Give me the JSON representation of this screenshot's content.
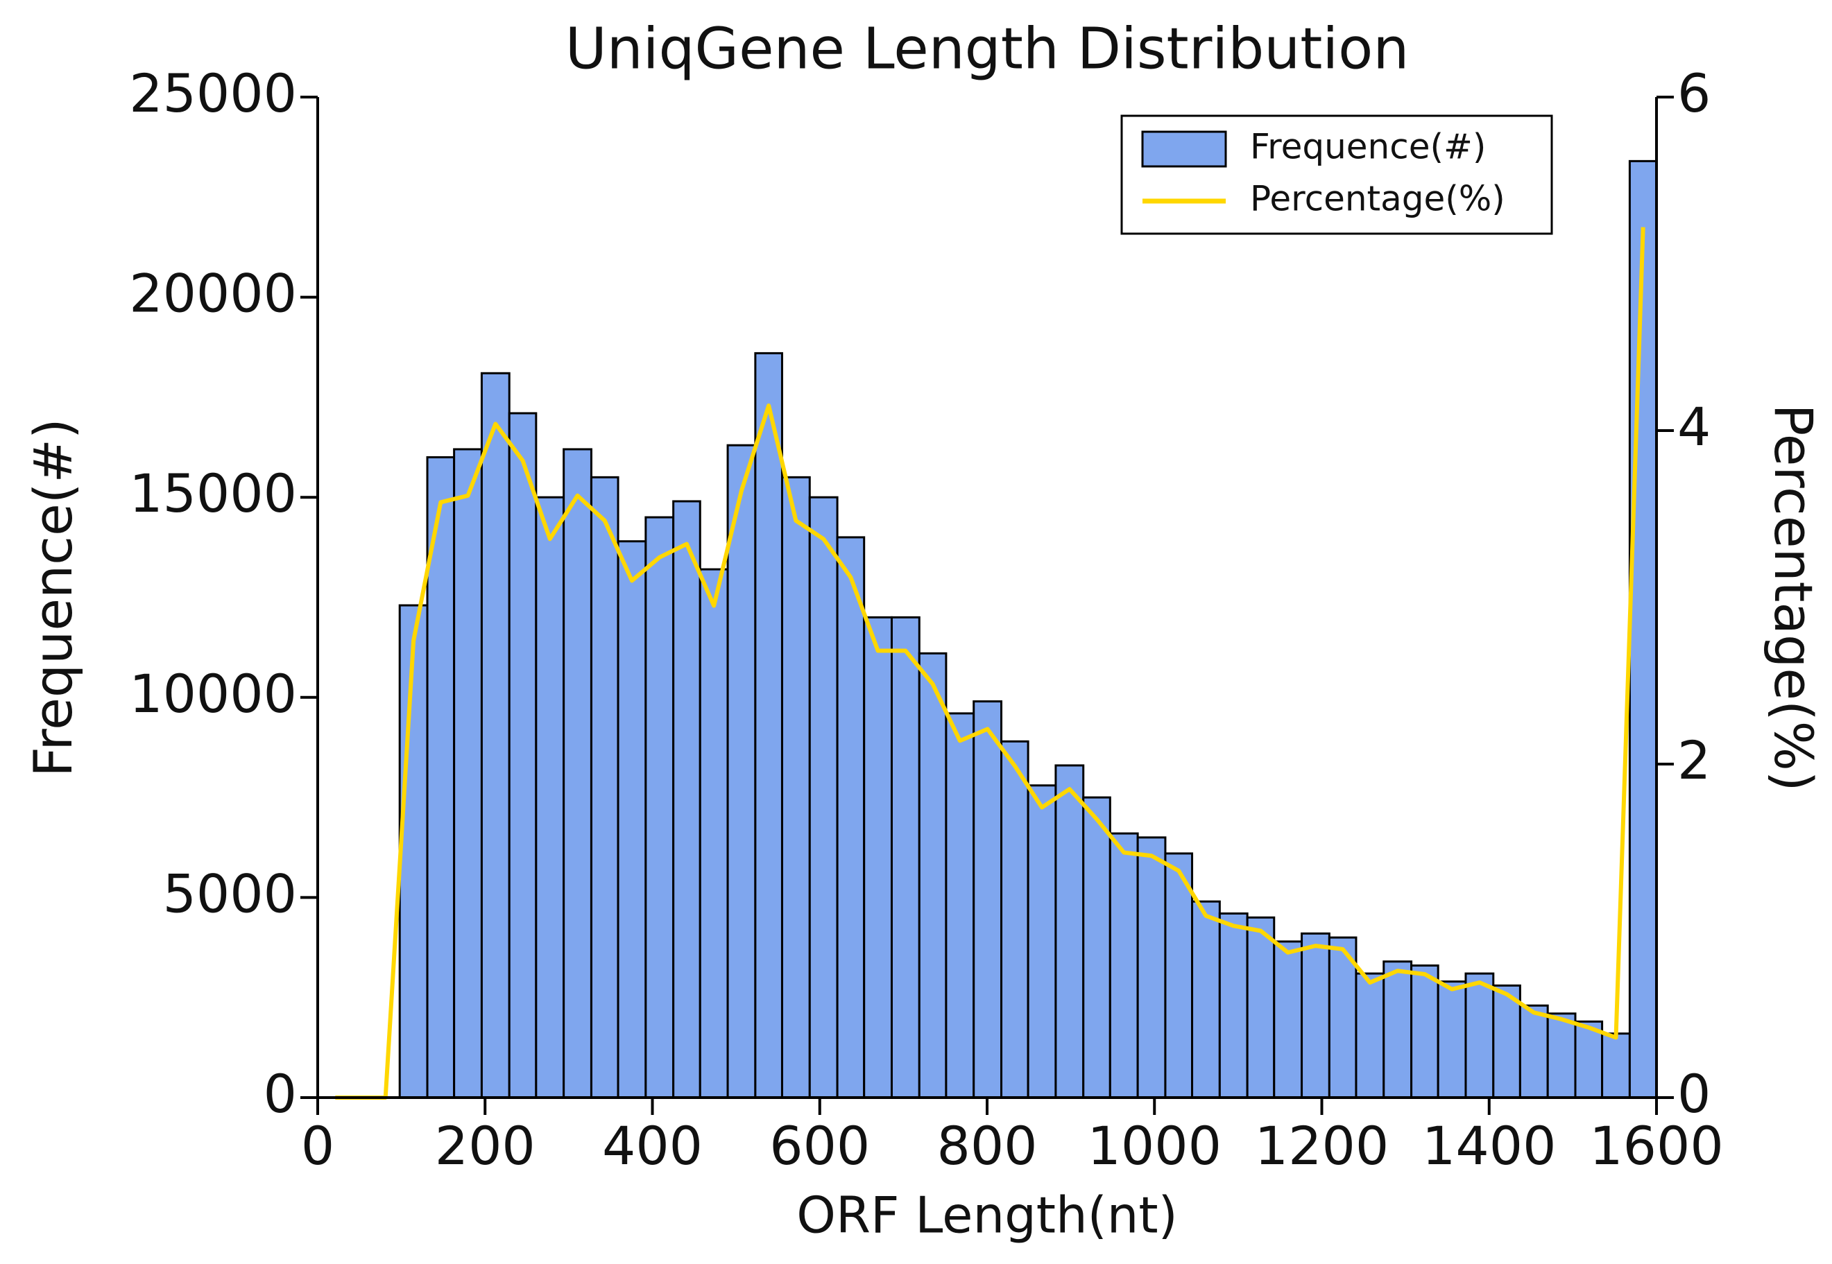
{
  "chart_data": {
    "type": "histogram",
    "title": "UniqGene Length Distribution",
    "x_label": "ORF Length(nt)",
    "y_label": "Frequence(#)",
    "y2_label": "Percentage(%)",
    "bins": [
      98,
      131,
      163,
      196,
      229,
      261,
      294,
      327,
      359,
      392,
      425,
      457,
      490,
      523,
      555,
      588,
      621,
      653,
      686,
      719,
      751,
      784,
      817,
      849,
      882,
      915,
      947,
      980,
      1013,
      1045,
      1078,
      1111,
      1143,
      1176,
      1209,
      1241,
      1274,
      1307,
      1339,
      1372,
      1405,
      1437,
      1470,
      1503,
      1535,
      1568,
      1600
    ],
    "series": [
      {
        "name": "Frequence(#)",
        "color": "#7fa6ee",
        "values": [
          12300,
          16000,
          16200,
          18100,
          17100,
          15000,
          16200,
          15500,
          13900,
          14500,
          14900,
          13200,
          16300,
          18600,
          15500,
          15000,
          14000,
          12000,
          12000,
          11100,
          9600,
          9900,
          8900,
          7800,
          8300,
          7500,
          6600,
          6500,
          6100,
          4900,
          4600,
          4500,
          3900,
          4100,
          4000,
          3100,
          3400,
          3300,
          2900,
          3100,
          2800,
          2300,
          2100,
          1900,
          1600,
          23400
        ]
      },
      {
        "name": "Percentage(%)",
        "type": "line",
        "axis": "y2",
        "color": "#ffd700",
        "x": [
          21,
          81,
          114.5,
          147,
          179.5,
          212.5,
          245,
          277.5,
          310.5,
          343,
          375.5,
          408.5,
          441,
          473.5,
          506.5,
          539,
          571.5,
          604.5,
          637,
          669.5,
          702.5,
          735,
          767.5,
          800.5,
          833,
          865.5,
          898.5,
          931,
          963.5,
          996.5,
          1029,
          1061.5,
          1094.5,
          1127,
          1159.5,
          1192.5,
          1225,
          1257.5,
          1290.5,
          1323,
          1355.5,
          1388.5,
          1421,
          1453.5,
          1486.5,
          1519,
          1551.5,
          1584
        ],
        "values": [
          0,
          0,
          2.74,
          3.57,
          3.61,
          4.04,
          3.82,
          3.35,
          3.61,
          3.46,
          3.1,
          3.24,
          3.32,
          2.95,
          3.64,
          4.15,
          3.46,
          3.35,
          3.12,
          2.68,
          2.68,
          2.48,
          2.14,
          2.21,
          1.99,
          1.74,
          1.85,
          1.67,
          1.47,
          1.45,
          1.36,
          1.09,
          1.03,
          1.0,
          0.87,
          0.91,
          0.89,
          0.69,
          0.76,
          0.74,
          0.65,
          0.69,
          0.62,
          0.51,
          0.47,
          0.42,
          0.36,
          5.22
        ]
      }
    ],
    "xlim": [
      0,
      1600
    ],
    "xticks": [
      0,
      200,
      400,
      600,
      800,
      1000,
      1200,
      1400,
      1600
    ],
    "ylim": [
      0,
      25000
    ],
    "yticks": [
      0,
      5000,
      10000,
      15000,
      20000,
      25000
    ],
    "y2lim": [
      0,
      6
    ],
    "y2ticks": [
      0,
      2,
      4,
      6
    ],
    "legend": "upper right"
  }
}
